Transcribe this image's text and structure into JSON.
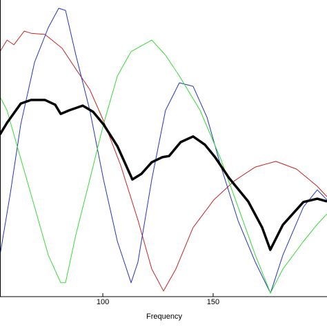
{
  "chart_data": {
    "type": "line",
    "x_label": "Frequency",
    "xlim": [
      53.4,
      201.6
    ],
    "ylim": [
      0,
      100
    ],
    "xticks": [
      100,
      150
    ],
    "series": [
      {
        "color": "#cc2222",
        "width": 1,
        "x": [
          53.4,
          56.6,
          59.7,
          64.4,
          67.5,
          73.8,
          81.6,
          87.8,
          94.1,
          100.3,
          108.1,
          116,
          122.2,
          127.5,
          133.1,
          140.9,
          150.3,
          159.7,
          169.1,
          178.4,
          187.8,
          197.2,
          201.6
        ],
        "values": [
          82.6,
          86.5,
          84.9,
          89.5,
          88.8,
          88.4,
          83.7,
          76.7,
          69.8,
          59.3,
          44.2,
          25.6,
          9.3,
          1.9,
          9.3,
          23.3,
          32.6,
          39.1,
          43.7,
          45.6,
          43,
          37.2,
          33.7
        ]
      },
      {
        "color": "#2233bb",
        "width": 1,
        "x": [
          53.4,
          58.1,
          62.8,
          69.1,
          75.3,
          80,
          83.1,
          87.8,
          94.1,
          100.3,
          106.6,
          112.8,
          115.9,
          122.2,
          128.4,
          134.7,
          140.9,
          147.2,
          153.4,
          161.3,
          169.1,
          176,
          181.6,
          190.9,
          197.2,
          201.6
        ],
        "values": [
          14,
          34.9,
          58.1,
          79.1,
          90.7,
          97.2,
          96.5,
          81.4,
          62.8,
          39.5,
          18.6,
          4.7,
          11.6,
          39.5,
          62.8,
          72.1,
          70.9,
          60.5,
          44.2,
          25.6,
          11.6,
          1.2,
          14,
          30.2,
          36,
          32.6
        ]
      },
      {
        "color": "#33dd33",
        "width": 1,
        "x": [
          53.4,
          56.6,
          62.8,
          69.1,
          75.3,
          80.9,
          83.1,
          87.8,
          94.1,
          100.3,
          106.6,
          112.8,
          122.2,
          128.4,
          134.7,
          144.1,
          153.4,
          161.3,
          169.1,
          176,
          181.6,
          190.9,
          197.2,
          201.6
        ],
        "values": [
          67.4,
          62.8,
          46.5,
          30.2,
          14,
          4.7,
          4.7,
          20.9,
          39.5,
          58.1,
          74.4,
          82.6,
          86.5,
          81.4,
          74.4,
          62.8,
          46.5,
          30.2,
          14,
          1.2,
          9.3,
          18.6,
          24.4,
          27.9
        ]
      },
      {
        "color": "#000000",
        "width": 3.5,
        "x": [
          53.4,
          56.6,
          62.8,
          67.5,
          73.8,
          78.4,
          80.9,
          84.7,
          90.9,
          95.6,
          100.3,
          106.6,
          113.4,
          117.5,
          122.2,
          126.9,
          130,
          135.3,
          140.9,
          146.3,
          150.9,
          157.2,
          165.9,
          172.2,
          175.9,
          181.6,
          190.9,
          197.2,
          201.6
        ],
        "values": [
          54.7,
          58.6,
          65.1,
          66.3,
          66.3,
          64.7,
          61.6,
          62.8,
          64.4,
          62.3,
          58.1,
          50.7,
          39.5,
          41.4,
          45.3,
          47,
          47.4,
          52.1,
          54,
          51.2,
          47,
          40,
          32.1,
          23.3,
          15.8,
          24.2,
          31.9,
          33,
          32.1
        ]
      }
    ]
  }
}
